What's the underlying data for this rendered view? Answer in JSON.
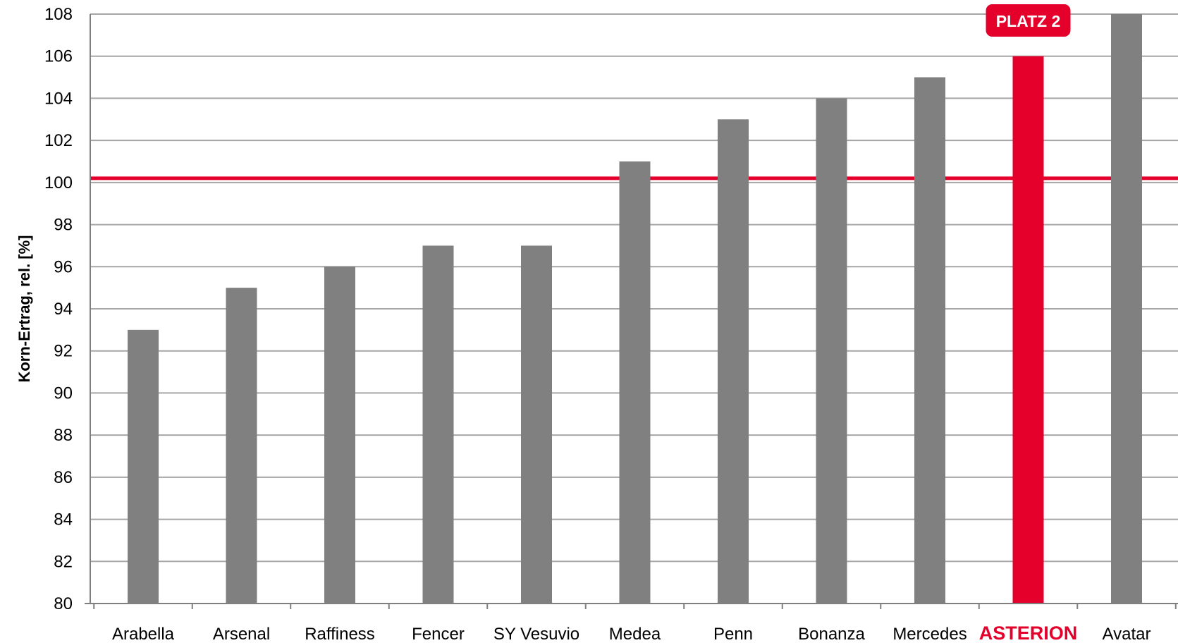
{
  "chart_data": {
    "type": "bar",
    "ylabel": "Korn-Ertrag, rel. [%]",
    "xlabel": "",
    "ylim": [
      80,
      108
    ],
    "yticks": [
      80,
      82,
      84,
      86,
      88,
      90,
      92,
      94,
      96,
      98,
      100,
      102,
      104,
      106,
      108
    ],
    "grid": true,
    "categories": [
      "Arabella",
      "Arsenal",
      "Raffiness",
      "Fencer",
      "SY Vesuvio",
      "Medea",
      "Penn",
      "Bonanza",
      "Mercedes",
      "ASTERION",
      "Avatar"
    ],
    "values": [
      93,
      95,
      96,
      97,
      97,
      101,
      103,
      104,
      105,
      106,
      108
    ],
    "highlight": {
      "category": "ASTERION",
      "badge": "PLATZ 2"
    },
    "reference_line": 100.2,
    "colors": {
      "bar": "#808080",
      "highlight": "#e4002b",
      "reference_line": "#e4002b",
      "grid": "#a6a6a6",
      "axis": "#7f7f7f"
    }
  }
}
